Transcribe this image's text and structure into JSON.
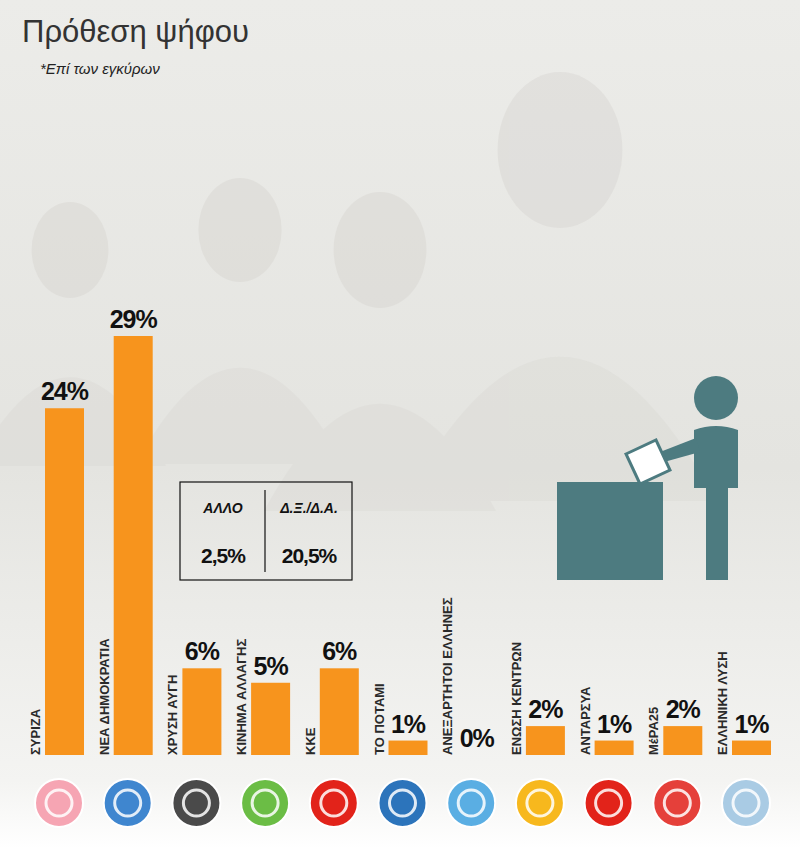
{
  "chart_data": {
    "type": "bar",
    "title": "Πρόθεση ψήφου",
    "subtitle": "*Επί των εγκύρων",
    "categories": [
      "ΣΥΡΙΖΑ",
      "ΝΕΑ ΔΗΜΟΚΡΑΤΙΑ",
      "ΧΡΥΣΗ ΑΥΓΗ",
      "ΚΙΝΗΜΑ ΑΛΛΑΓΗΣ",
      "ΚΚΕ",
      "ΤΟ ΠΟΤΑΜΙ",
      "ΑΝΕΞΑΡΤΗΤΟΙ ΕΛΛΗΝΕΣ",
      "ΕΝΩΣΗ ΚΕΝΤΡΩΝ",
      "ΑΝΤΑΡΣΥΑ",
      "ΜέΡΑ25",
      "ΕΛΛΗΝΙΚΗ ΛΥΣΗ"
    ],
    "values": [
      24,
      29,
      6,
      5,
      6,
      1,
      0,
      2,
      1,
      2,
      1
    ],
    "value_labels": [
      "24%",
      "29%",
      "6%",
      "5%",
      "6%",
      "1%",
      "0%",
      "2%",
      "1%",
      "2%",
      "1%"
    ],
    "color": "#f7941d",
    "ylim": [
      0,
      29
    ],
    "data_labels": true,
    "tick_labels": false,
    "annotations": [
      {
        "text": "ΑΛΛΟ",
        "label": "2,5%"
      },
      {
        "text": "Δ.Ξ./Δ.Α.",
        "label": "20,5%"
      }
    ]
  }
}
